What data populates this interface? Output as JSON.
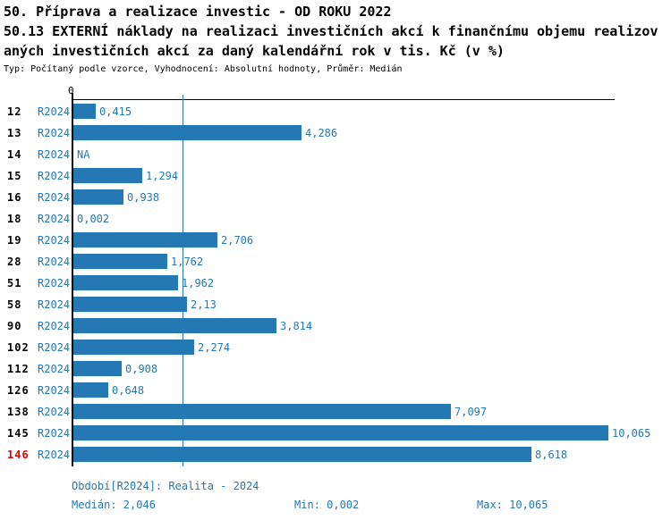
{
  "chart_data": {
    "type": "bar",
    "orientation": "horizontal",
    "title_lines": [
      "50. Příprava a realizace investic - OD ROKU 2022",
      "50.13 EXTERNÍ náklady na realizaci investičních akcí k finančnímu objemu realizov",
      "aných investičních akcí za daný kalendářní rok v tis. Kč (v %)"
    ],
    "subtitle": "Typ: Počítaný podle vzorce, Vyhodnocení: Absolutní hodnoty, Průměr: Medián",
    "x_zero_label": "0",
    "xlim": [
      0,
      10.065
    ],
    "median_value": 2.046,
    "grid": "single median gridline",
    "legend": "none",
    "bar_color": "#2478b4",
    "highlight_row_color": "#dd0000",
    "rows": [
      {
        "id": "12",
        "period": "R2024",
        "value": 0.415,
        "label": "0,415",
        "highlight": false
      },
      {
        "id": "13",
        "period": "R2024",
        "value": 4.286,
        "label": "4,286",
        "highlight": false
      },
      {
        "id": "14",
        "period": "R2024",
        "value": null,
        "label": "NA",
        "highlight": false
      },
      {
        "id": "15",
        "period": "R2024",
        "value": 1.294,
        "label": "1,294",
        "highlight": false
      },
      {
        "id": "16",
        "period": "R2024",
        "value": 0.938,
        "label": "0,938",
        "highlight": false
      },
      {
        "id": "18",
        "period": "R2024",
        "value": 0.002,
        "label": "0,002",
        "highlight": false
      },
      {
        "id": "19",
        "period": "R2024",
        "value": 2.706,
        "label": "2,706",
        "highlight": false
      },
      {
        "id": "28",
        "period": "R2024",
        "value": 1.762,
        "label": "1,762",
        "highlight": false
      },
      {
        "id": "51",
        "period": "R2024",
        "value": 1.962,
        "label": "1,962",
        "highlight": false
      },
      {
        "id": "58",
        "period": "R2024",
        "value": 2.13,
        "label": "2,13",
        "highlight": false
      },
      {
        "id": "90",
        "period": "R2024",
        "value": 3.814,
        "label": "3,814",
        "highlight": false
      },
      {
        "id": "102",
        "period": "R2024",
        "value": 2.274,
        "label": "2,274",
        "highlight": false
      },
      {
        "id": "112",
        "period": "R2024",
        "value": 0.908,
        "label": "0,908",
        "highlight": false
      },
      {
        "id": "126",
        "period": "R2024",
        "value": 0.648,
        "label": "0,648",
        "highlight": false
      },
      {
        "id": "138",
        "period": "R2024",
        "value": 7.097,
        "label": "7,097",
        "highlight": false
      },
      {
        "id": "145",
        "period": "R2024",
        "value": 10.065,
        "label": "10,065",
        "highlight": false
      },
      {
        "id": "146",
        "period": "R2024",
        "value": 8.618,
        "label": "8,618",
        "highlight": true
      }
    ],
    "footer": {
      "period_info": "Období[R2024]: Realita - 2024",
      "median_label": "Medián: 2,046",
      "min_label": "Min: 0,002",
      "max_label": "Max: 10,065"
    }
  }
}
